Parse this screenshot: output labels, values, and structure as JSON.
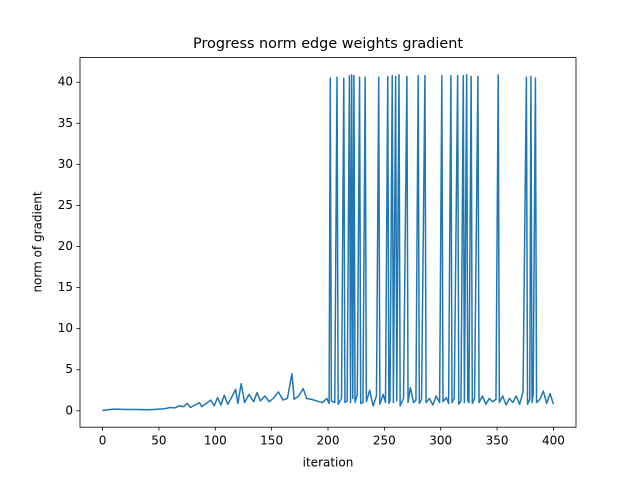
{
  "chart_data": {
    "type": "line",
    "title": "Progress norm edge weights gradient",
    "xlabel": "iteration",
    "ylabel": "norm of gradient",
    "color": "#1f77b4",
    "x": [
      0,
      5,
      10,
      15,
      20,
      25,
      30,
      35,
      40,
      45,
      50,
      55,
      60,
      64,
      68,
      72,
      75,
      78,
      82,
      86,
      88,
      92,
      96,
      99,
      102,
      105,
      108,
      111,
      114,
      118,
      120,
      123,
      126,
      130,
      134,
      137,
      140,
      144,
      148,
      152,
      156,
      160,
      164,
      168,
      170,
      174,
      178,
      181,
      185,
      190,
      195,
      199,
      201,
      202,
      203,
      206,
      208,
      209,
      212,
      214,
      215,
      217,
      219,
      220,
      221,
      222,
      223,
      224,
      226,
      228,
      229,
      231,
      233,
      234,
      237,
      240,
      243,
      245,
      246,
      249,
      251,
      253,
      254,
      255,
      257,
      258,
      260,
      261,
      263,
      264,
      267,
      270,
      271,
      273,
      276,
      278,
      280,
      281,
      283,
      286,
      287,
      290,
      293,
      296,
      299,
      301,
      302,
      305,
      307,
      309,
      310,
      312,
      315,
      316,
      318,
      320,
      321,
      323,
      324,
      325,
      327,
      328,
      330,
      333,
      334,
      337,
      340,
      343,
      346,
      349,
      351,
      352,
      355,
      358,
      361,
      364,
      367,
      370,
      373,
      376,
      377,
      379,
      380,
      381,
      382,
      384,
      385,
      388,
      391,
      394,
      397,
      400
    ],
    "values": [
      0.05,
      0.12,
      0.2,
      0.18,
      0.15,
      0.15,
      0.15,
      0.14,
      0.13,
      0.15,
      0.2,
      0.25,
      0.4,
      0.35,
      0.6,
      0.5,
      0.9,
      0.4,
      0.7,
      1.0,
      0.5,
      0.9,
      1.3,
      0.6,
      1.6,
      0.7,
      1.9,
      0.8,
      1.5,
      2.6,
      0.9,
      3.3,
      1.0,
      2.0,
      1.1,
      2.2,
      1.2,
      1.8,
      1.1,
      1.6,
      2.3,
      1.3,
      1.5,
      4.5,
      1.4,
      1.8,
      2.7,
      1.5,
      1.4,
      1.2,
      1.0,
      1.5,
      0.9,
      40.5,
      1.2,
      1.0,
      40.6,
      0.8,
      1.5,
      40.5,
      1.0,
      1.2,
      40.8,
      1.0,
      40.9,
      1.5,
      40.8,
      1.0,
      2.0,
      40.6,
      0.9,
      1.0,
      40.6,
      1.1,
      2.5,
      0.6,
      1.8,
      40.6,
      0.8,
      2.0,
      1.0,
      40.7,
      0.9,
      1.2,
      40.8,
      1.0,
      40.7,
      1.2,
      40.9,
      0.6,
      1.5,
      40.7,
      1.0,
      2.8,
      1.0,
      1.3,
      40.8,
      0.9,
      1.4,
      40.8,
      1.0,
      1.5,
      0.7,
      1.8,
      1.0,
      40.8,
      1.1,
      1.6,
      0.9,
      40.8,
      1.0,
      1.5,
      40.8,
      0.8,
      1.2,
      40.8,
      1.0,
      40.9,
      1.2,
      1.0,
      40.7,
      0.9,
      1.5,
      40.7,
      1.0,
      1.8,
      0.8,
      1.5,
      1.1,
      1.4,
      40.9,
      1.0,
      1.8,
      0.7,
      1.5,
      1.0,
      1.8,
      0.8,
      2.3,
      40.6,
      0.8,
      1.4,
      40.7,
      1.0,
      2.0,
      40.5,
      1.0,
      1.4,
      2.4,
      0.9,
      2.1,
      0.8
    ],
    "xlim": [
      -20,
      420
    ],
    "ylim": [
      -2.0,
      43.0
    ],
    "xticks": [
      0,
      50,
      100,
      150,
      200,
      250,
      300,
      350,
      400
    ],
    "yticks": [
      0,
      5,
      10,
      15,
      20,
      25,
      30,
      35,
      40
    ]
  }
}
